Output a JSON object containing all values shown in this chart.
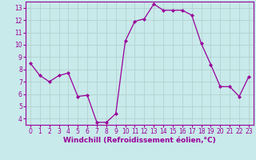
{
  "x": [
    0,
    1,
    2,
    3,
    4,
    5,
    6,
    7,
    8,
    9,
    10,
    11,
    12,
    13,
    14,
    15,
    16,
    17,
    18,
    19,
    20,
    21,
    22,
    23
  ],
  "y": [
    8.5,
    7.5,
    7.0,
    7.5,
    7.7,
    5.8,
    5.9,
    3.7,
    3.7,
    4.4,
    10.3,
    11.9,
    12.1,
    13.3,
    12.8,
    12.8,
    12.8,
    12.4,
    10.1,
    8.4,
    6.6,
    6.6,
    5.8,
    7.4
  ],
  "line_color": "#990099",
  "marker": "D",
  "markersize": 2.0,
  "linewidth": 0.9,
  "xlabel": "Windchill (Refroidissement éolien,°C)",
  "xlabel_fontsize": 6.5,
  "bg_color": "#c8eaea",
  "grid_color": "#b0cccc",
  "yticks": [
    4,
    5,
    6,
    7,
    8,
    9,
    10,
    11,
    12,
    13
  ],
  "xticks": [
    0,
    1,
    2,
    3,
    4,
    5,
    6,
    7,
    8,
    9,
    10,
    11,
    12,
    13,
    14,
    15,
    16,
    17,
    18,
    19,
    20,
    21,
    22,
    23
  ],
  "ylim": [
    3.5,
    13.5
  ],
  "xlim": [
    -0.5,
    23.5
  ],
  "tick_fontsize": 5.5,
  "tick_color": "#990099"
}
